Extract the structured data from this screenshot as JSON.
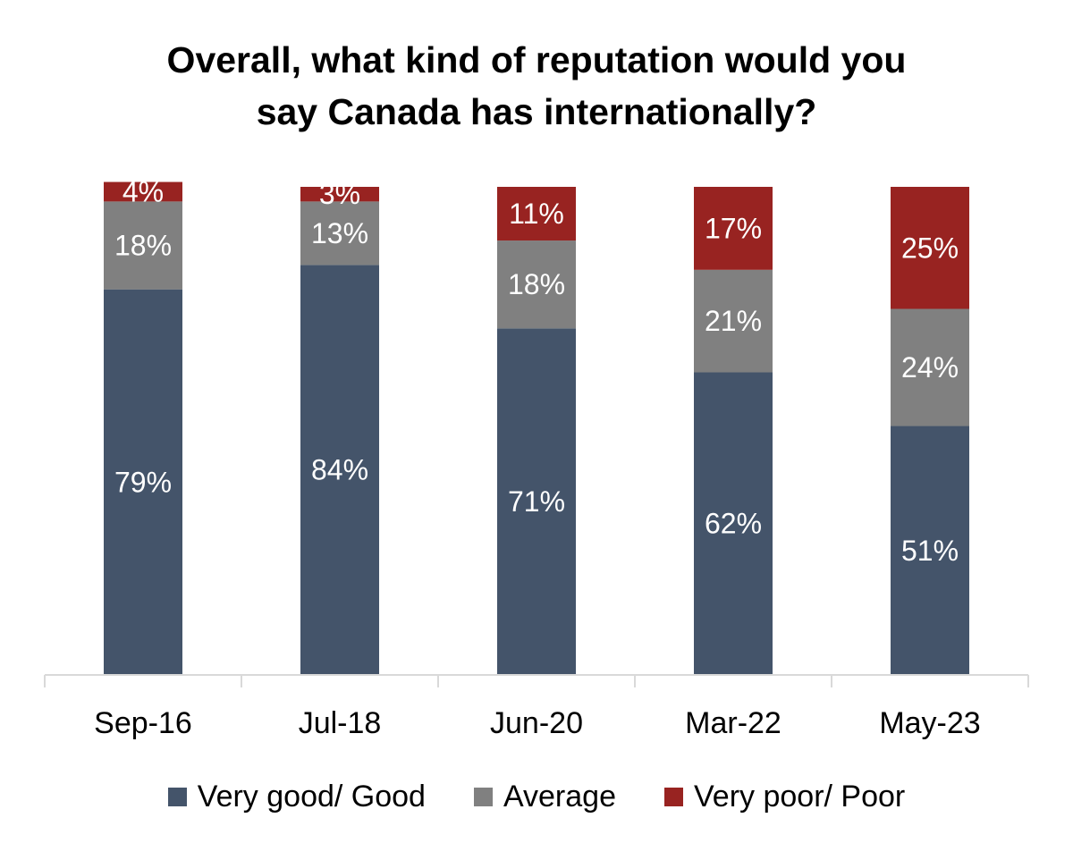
{
  "chart_data": {
    "type": "bar",
    "stacked": true,
    "orientation": "vertical",
    "title_lines": [
      "Overall, what kind of reputation would you",
      "say Canada has internationally?"
    ],
    "categories": [
      "Sep-16",
      "Jul-18",
      "Jun-20",
      "Mar-22",
      "May-23"
    ],
    "series": [
      {
        "name": "Very good/ Good",
        "color": "#44546A",
        "values": [
          79,
          84,
          71,
          62,
          51
        ],
        "labels": [
          "79%",
          "84%",
          "71%",
          "62%",
          "51%"
        ]
      },
      {
        "name": "Average",
        "color": "#808080",
        "values": [
          18,
          13,
          18,
          21,
          24
        ],
        "labels": [
          "18%",
          "13%",
          "18%",
          "21%",
          "24%"
        ]
      },
      {
        "name": "Very poor/ Poor",
        "color": "#982321",
        "values": [
          4,
          3,
          11,
          17,
          25
        ],
        "labels": [
          "4%",
          "3%",
          "11%",
          "17%",
          "25%"
        ]
      }
    ],
    "ylim": [
      0,
      100
    ],
    "grid": false,
    "legend_position": "bottom"
  }
}
